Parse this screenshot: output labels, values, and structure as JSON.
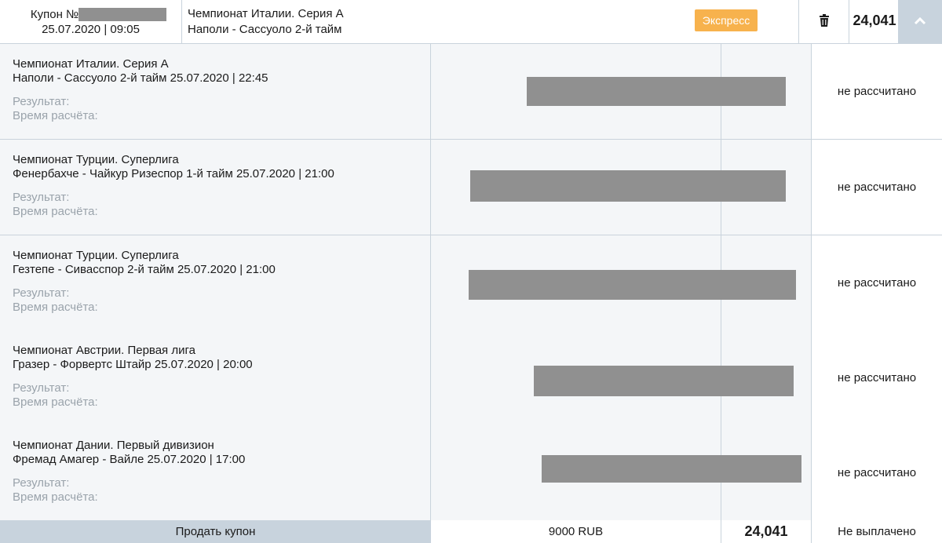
{
  "header": {
    "coupon_label": "Купон №",
    "coupon_datetime": "25.07.2020 | 09:05",
    "championship": "Чемпионат Италии. Серия А",
    "match": "Наполи - Сассуоло 2-й тайм",
    "type_badge": "Экспресс",
    "odds": "24,041"
  },
  "labels": {
    "result": "Результат:",
    "calc_time": "Время расчёта:"
  },
  "events": [
    {
      "championship": "Чемпионат Италии. Серия А",
      "match": "Наполи - Сассуоло 2-й тайм 25.07.2020 | 22:45",
      "status": "не рассчитано"
    },
    {
      "championship": "Чемпионат Турции. Суперлига",
      "match": "Фенербахче - Чайкур Ризеспор 1-й тайм 25.07.2020 | 21:00",
      "status": "не рассчитано"
    },
    {
      "championship": "Чемпионат Турции. Суперлига",
      "match": "Гезтепе - Сивасспор 2-й тайм 25.07.2020 | 21:00",
      "status": "не рассчитано"
    },
    {
      "championship": "Чемпионат Австрии. Первая лига",
      "match": "Гразер - Форвертс Штайр 25.07.2020 | 20:00",
      "status": "не рассчитано"
    },
    {
      "championship": "Чемпионат Дании. Первый дивизион",
      "match": "Фремад Амагер - Вайле 25.07.2020 | 17:00",
      "status": "не рассчитано"
    }
  ],
  "footer": {
    "sell_label": "Продать купон",
    "amount": "9000 RUB",
    "total_odds": "24,041",
    "payout_status": "Не выплачено"
  },
  "icons": {
    "trash": "trash-icon",
    "collapse": "chevron-up-icon"
  }
}
